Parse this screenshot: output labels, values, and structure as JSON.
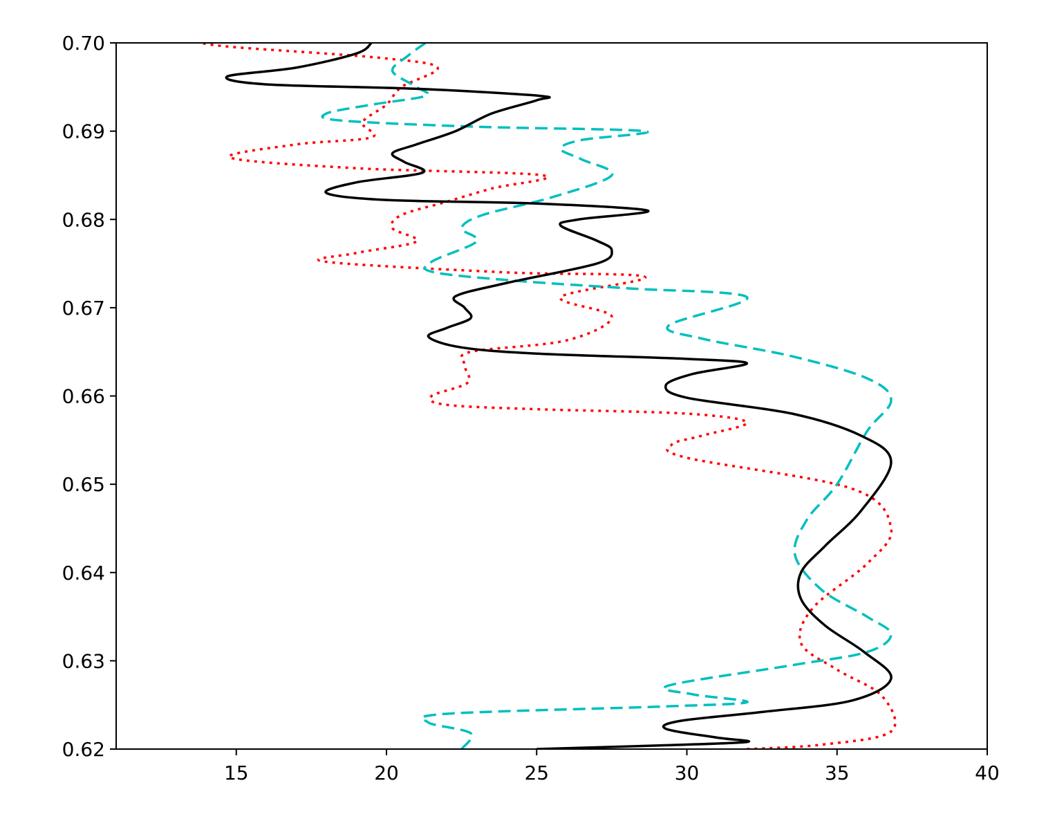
{
  "chart_data": {
    "type": "line",
    "title": "",
    "xlabel": "",
    "ylabel": "",
    "xlim": [
      11,
      40
    ],
    "ylim": [
      0.62,
      0.7
    ],
    "grid": false,
    "legend": "none",
    "xticks": [
      15,
      20,
      25,
      30,
      35,
      40
    ],
    "xtick_labels": [
      "15",
      "20",
      "25",
      "30",
      "35",
      "40"
    ],
    "yticks": [
      0.62,
      0.63,
      0.64,
      0.65,
      0.66,
      0.67,
      0.68,
      0.69,
      0.7
    ],
    "ytick_labels": [
      "0.62",
      "0.63",
      "0.64",
      "0.65",
      "0.66",
      "0.67",
      "0.68",
      "0.69",
      "0.70"
    ],
    "series": [
      {
        "style": "solid",
        "color": "#000000",
        "points": [
          [
            25.0,
            0.62
          ],
          [
            29.0,
            0.6204
          ],
          [
            32.0,
            0.6208
          ],
          [
            31.0,
            0.6213
          ],
          [
            29.3,
            0.6223
          ],
          [
            29.8,
            0.6232
          ],
          [
            32.5,
            0.6242
          ],
          [
            35.5,
            0.6255
          ],
          [
            36.8,
            0.628
          ],
          [
            35.9,
            0.631
          ],
          [
            34.6,
            0.634
          ],
          [
            33.8,
            0.637
          ],
          [
            33.8,
            0.64
          ],
          [
            34.6,
            0.643
          ],
          [
            35.8,
            0.647
          ],
          [
            36.8,
            0.6525
          ],
          [
            35.8,
            0.6555
          ],
          [
            33.5,
            0.658
          ],
          [
            30.0,
            0.6598
          ],
          [
            29.3,
            0.6612
          ],
          [
            30.2,
            0.6625
          ],
          [
            32.0,
            0.6637
          ],
          [
            30.0,
            0.6642
          ],
          [
            25.0,
            0.6648
          ],
          [
            22.5,
            0.6655
          ],
          [
            21.4,
            0.6667
          ],
          [
            22.0,
            0.6677
          ],
          [
            22.8,
            0.6688
          ],
          [
            22.6,
            0.67
          ],
          [
            22.3,
            0.6713
          ],
          [
            24.0,
            0.6728
          ],
          [
            27.0,
            0.675
          ],
          [
            27.5,
            0.6765
          ],
          [
            27.0,
            0.6776
          ],
          [
            25.8,
            0.6793
          ],
          [
            26.4,
            0.68
          ],
          [
            28.7,
            0.681
          ],
          [
            25.0,
            0.6818
          ],
          [
            20.0,
            0.6822
          ],
          [
            18.0,
            0.683
          ],
          [
            19.0,
            0.6842
          ],
          [
            21.2,
            0.6853
          ],
          [
            20.6,
            0.6865
          ],
          [
            20.2,
            0.6875
          ],
          [
            21.0,
            0.6885
          ],
          [
            22.3,
            0.69
          ],
          [
            23.5,
            0.692
          ],
          [
            25.0,
            0.6935
          ],
          [
            25.1,
            0.694
          ],
          [
            21.0,
            0.6948
          ],
          [
            16.0,
            0.6953
          ],
          [
            14.7,
            0.6962
          ],
          [
            17.0,
            0.6972
          ],
          [
            19.0,
            0.6988
          ],
          [
            19.5,
            0.7
          ]
        ]
      },
      {
        "style": "dashed",
        "color": "#00bfbf",
        "points": [
          [
            22.5,
            0.62
          ],
          [
            22.8,
            0.6218
          ],
          [
            21.4,
            0.623
          ],
          [
            22.0,
            0.624
          ],
          [
            29.0,
            0.6248
          ],
          [
            32.0,
            0.6253
          ],
          [
            30.2,
            0.6262
          ],
          [
            29.4,
            0.6272
          ],
          [
            33.5,
            0.6295
          ],
          [
            36.0,
            0.631
          ],
          [
            36.8,
            0.633
          ],
          [
            36.0,
            0.635
          ],
          [
            34.5,
            0.638
          ],
          [
            33.6,
            0.642
          ],
          [
            34.0,
            0.646
          ],
          [
            35.0,
            0.65
          ],
          [
            36.0,
            0.656
          ],
          [
            36.8,
            0.6595
          ],
          [
            36.0,
            0.662
          ],
          [
            33.5,
            0.6645
          ],
          [
            30.5,
            0.6665
          ],
          [
            29.4,
            0.668
          ],
          [
            32.0,
            0.6712
          ],
          [
            28.0,
            0.6722
          ],
          [
            24.5,
            0.673
          ],
          [
            21.6,
            0.674
          ],
          [
            21.5,
            0.6752
          ],
          [
            23.0,
            0.6775
          ],
          [
            22.5,
            0.679
          ],
          [
            23.2,
            0.6805
          ],
          [
            25.5,
            0.6825
          ],
          [
            27.5,
            0.685
          ],
          [
            26.5,
            0.6868
          ],
          [
            25.8,
            0.688
          ],
          [
            26.5,
            0.689
          ],
          [
            28.6,
            0.69
          ],
          [
            23.0,
            0.6905
          ],
          [
            18.5,
            0.6912
          ],
          [
            18.0,
            0.692
          ],
          [
            19.5,
            0.693
          ],
          [
            21.3,
            0.694
          ],
          [
            21.0,
            0.695
          ],
          [
            20.2,
            0.6968
          ],
          [
            20.7,
            0.6985
          ],
          [
            21.3,
            0.7
          ]
        ]
      },
      {
        "style": "dotted",
        "color": "#ff0000",
        "points": [
          [
            32.0,
            0.62
          ],
          [
            34.5,
            0.6205
          ],
          [
            36.8,
            0.622
          ],
          [
            36.5,
            0.626
          ],
          [
            35.0,
            0.629
          ],
          [
            33.8,
            0.632
          ],
          [
            34.2,
            0.636
          ],
          [
            36.0,
            0.641
          ],
          [
            36.8,
            0.645
          ],
          [
            35.5,
            0.6495
          ],
          [
            30.0,
            0.653
          ],
          [
            29.5,
            0.6545
          ],
          [
            30.5,
            0.6555
          ],
          [
            32.0,
            0.657
          ],
          [
            30.0,
            0.658
          ],
          [
            25.0,
            0.6585
          ],
          [
            22.0,
            0.659
          ],
          [
            21.5,
            0.66
          ],
          [
            22.7,
            0.6615
          ],
          [
            22.6,
            0.6635
          ],
          [
            22.8,
            0.665
          ],
          [
            26.0,
            0.6663
          ],
          [
            27.5,
            0.669
          ],
          [
            25.8,
            0.6712
          ],
          [
            28.6,
            0.6735
          ],
          [
            24.0,
            0.674
          ],
          [
            18.0,
            0.6752
          ],
          [
            19.0,
            0.6762
          ],
          [
            21.0,
            0.6775
          ],
          [
            20.2,
            0.679
          ],
          [
            20.5,
            0.6805
          ],
          [
            22.0,
            0.682
          ],
          [
            23.5,
            0.6835
          ],
          [
            25.2,
            0.685
          ],
          [
            19.0,
            0.6858
          ],
          [
            14.8,
            0.687
          ],
          [
            17.0,
            0.6885
          ],
          [
            19.5,
            0.6893
          ],
          [
            19.2,
            0.691
          ],
          [
            20.0,
            0.693
          ],
          [
            20.5,
            0.695
          ],
          [
            21.7,
            0.6972
          ],
          [
            19.8,
            0.6983
          ],
          [
            15.0,
            0.6995
          ],
          [
            13.8,
            0.7
          ]
        ]
      }
    ]
  }
}
